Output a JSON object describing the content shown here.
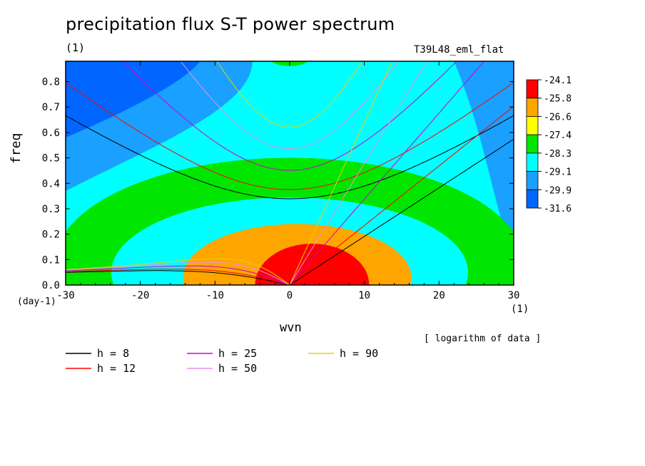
{
  "title": "precipitation flux S-T power spectrum",
  "subtitle": "(1)",
  "run_label": "T39L48_eml_flat",
  "note": "[ logarithm of data ]",
  "colors": {
    "levels_fill": [
      "#0066ff",
      "#1aa0ff",
      "#00ffff",
      "#00e600",
      "#ffff00",
      "#ffa500",
      "#ff0000"
    ]
  },
  "chart_data": {
    "type": "heatmap",
    "title": "precipitation flux S-T power spectrum",
    "subtitle": "(1)",
    "xlabel": "wvn",
    "ylabel": "freq",
    "x_unit": "(1)",
    "y_unit": "(day-1)",
    "xlim": [
      -30,
      30
    ],
    "ylim": [
      0,
      0.88
    ],
    "x_ticks": [
      -30,
      -20,
      -10,
      0,
      10,
      20,
      30
    ],
    "x_tick_labels": [
      "-30",
      "-20",
      "-10",
      "0",
      "10",
      "20",
      "30"
    ],
    "y_ticks": [
      0,
      0.1,
      0.2,
      0.3,
      0.4,
      0.5,
      0.6,
      0.7,
      0.8
    ],
    "y_tick_labels": [
      "0.0",
      "0.1",
      "0.2",
      "0.3",
      "0.4",
      "0.5",
      "0.6",
      "0.7",
      "0.8"
    ],
    "colorbar": {
      "levels": [
        "-24.1",
        "-25.8",
        "-26.6",
        "-27.4",
        "-28.3",
        "-29.1",
        "-29.9",
        "-31.6"
      ],
      "colors": [
        "#ff0000",
        "#ffa500",
        "#ffff00",
        "#00e600",
        "#00ffff",
        "#1aa0ff",
        "#0066ff"
      ]
    },
    "field_centers": [
      {
        "x": 0,
        "y": 0.05,
        "value": -24.0
      },
      {
        "x": -25,
        "y": 0.85,
        "value": -32.0
      }
    ],
    "dispersion_curves": [
      {
        "name": "h =  8",
        "h": 8,
        "color": "#000000"
      },
      {
        "name": "h = 12",
        "h": 12,
        "color": "#ff0000"
      },
      {
        "name": "h = 25",
        "h": 25,
        "color": "#cc00cc"
      },
      {
        "name": "h = 50",
        "h": 50,
        "color": "#e890e8"
      },
      {
        "name": "h = 90",
        "h": 90,
        "color": "#e6d200"
      }
    ],
    "legend_position": "bottom-left"
  }
}
